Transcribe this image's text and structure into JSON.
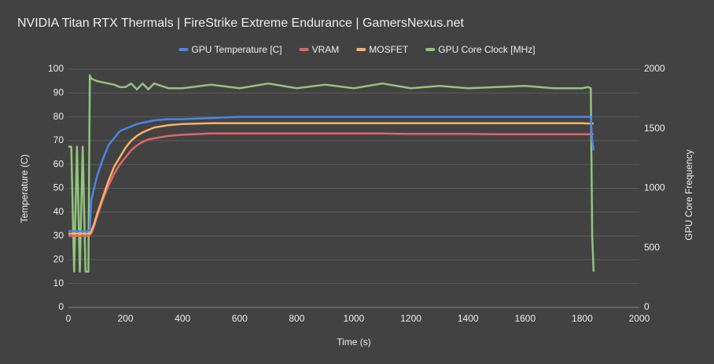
{
  "chart_data": {
    "type": "line",
    "title": "NVIDIA Titan RTX Thermals | FireStrike Extreme Endurance | GamersNexus.net",
    "x_label": "Time (s)",
    "y_label": "Temperature (C)",
    "y2_label": "GPU Core Frequency",
    "x": [
      0,
      10,
      20,
      30,
      40,
      50,
      60,
      70,
      75,
      80,
      90,
      100,
      120,
      140,
      160,
      180,
      200,
      220,
      240,
      260,
      280,
      300,
      350,
      400,
      500,
      600,
      700,
      800,
      900,
      1000,
      1100,
      1200,
      1300,
      1400,
      1500,
      1600,
      1700,
      1800,
      1820,
      1830,
      1835,
      1840
    ],
    "series": [
      {
        "name": "GPU Temperature [C]",
        "color": "#4a86e8",
        "values": [
          32,
          32,
          32,
          32,
          32,
          32,
          32,
          32,
          33,
          45,
          50,
          55,
          62,
          68,
          71,
          74,
          75,
          76,
          77,
          77.5,
          78,
          78.5,
          79,
          79,
          79.5,
          80,
          80,
          80,
          80,
          80,
          80,
          80,
          80,
          80,
          80,
          80,
          80,
          80,
          80,
          80,
          70,
          66
        ]
      },
      {
        "name": "VRAM",
        "color": "#e06666",
        "values": [
          30,
          30,
          30,
          30,
          30,
          30,
          30,
          30,
          30.5,
          31,
          34,
          38,
          45,
          51,
          56,
          60,
          63,
          66,
          68,
          69.5,
          70.5,
          71,
          72,
          72.5,
          73,
          73,
          73,
          73,
          73,
          73,
          73,
          72.8,
          72.8,
          72.8,
          72.7,
          72.7,
          72.7,
          72.7,
          72.7,
          72.7,
          72.7,
          72.7
        ]
      },
      {
        "name": "MOSFET",
        "color": "#f6b26b",
        "values": [
          31,
          31,
          31,
          31,
          31,
          31,
          31,
          31,
          31,
          32,
          35,
          39,
          46,
          53,
          59,
          63,
          67,
          70,
          72,
          73.5,
          74.5,
          75.5,
          76.5,
          77,
          77.3,
          77.3,
          77.3,
          77.3,
          77.3,
          77.3,
          77.3,
          77.3,
          77.3,
          77.3,
          77.3,
          77.3,
          77.3,
          77.3,
          77.2,
          77.2,
          77.2,
          77.2
        ]
      },
      {
        "name": "GPU Core Clock [MHz]",
        "color": "#93c47d",
        "axis": "y2",
        "values": [
          1350,
          1350,
          300,
          1350,
          300,
          1350,
          300,
          300,
          1950,
          1920,
          1910,
          1900,
          1890,
          1880,
          1870,
          1850,
          1850,
          1880,
          1830,
          1880,
          1830,
          1880,
          1840,
          1840,
          1870,
          1840,
          1880,
          1840,
          1870,
          1840,
          1880,
          1840,
          1860,
          1840,
          1850,
          1860,
          1840,
          1840,
          1850,
          1840,
          600,
          300
        ]
      }
    ],
    "xlim": [
      0,
      2000
    ],
    "xticks": [
      0,
      200,
      400,
      600,
      800,
      1000,
      1200,
      1400,
      1600,
      1800,
      2000
    ],
    "ylim": [
      0,
      100
    ],
    "yticks": [
      0,
      10,
      20,
      30,
      40,
      50,
      60,
      70,
      80,
      90,
      100
    ],
    "y2lim": [
      0,
      2000
    ],
    "y2ticks": [
      0,
      500,
      1000,
      1500,
      2000
    ],
    "grid": true,
    "legend": "top"
  }
}
